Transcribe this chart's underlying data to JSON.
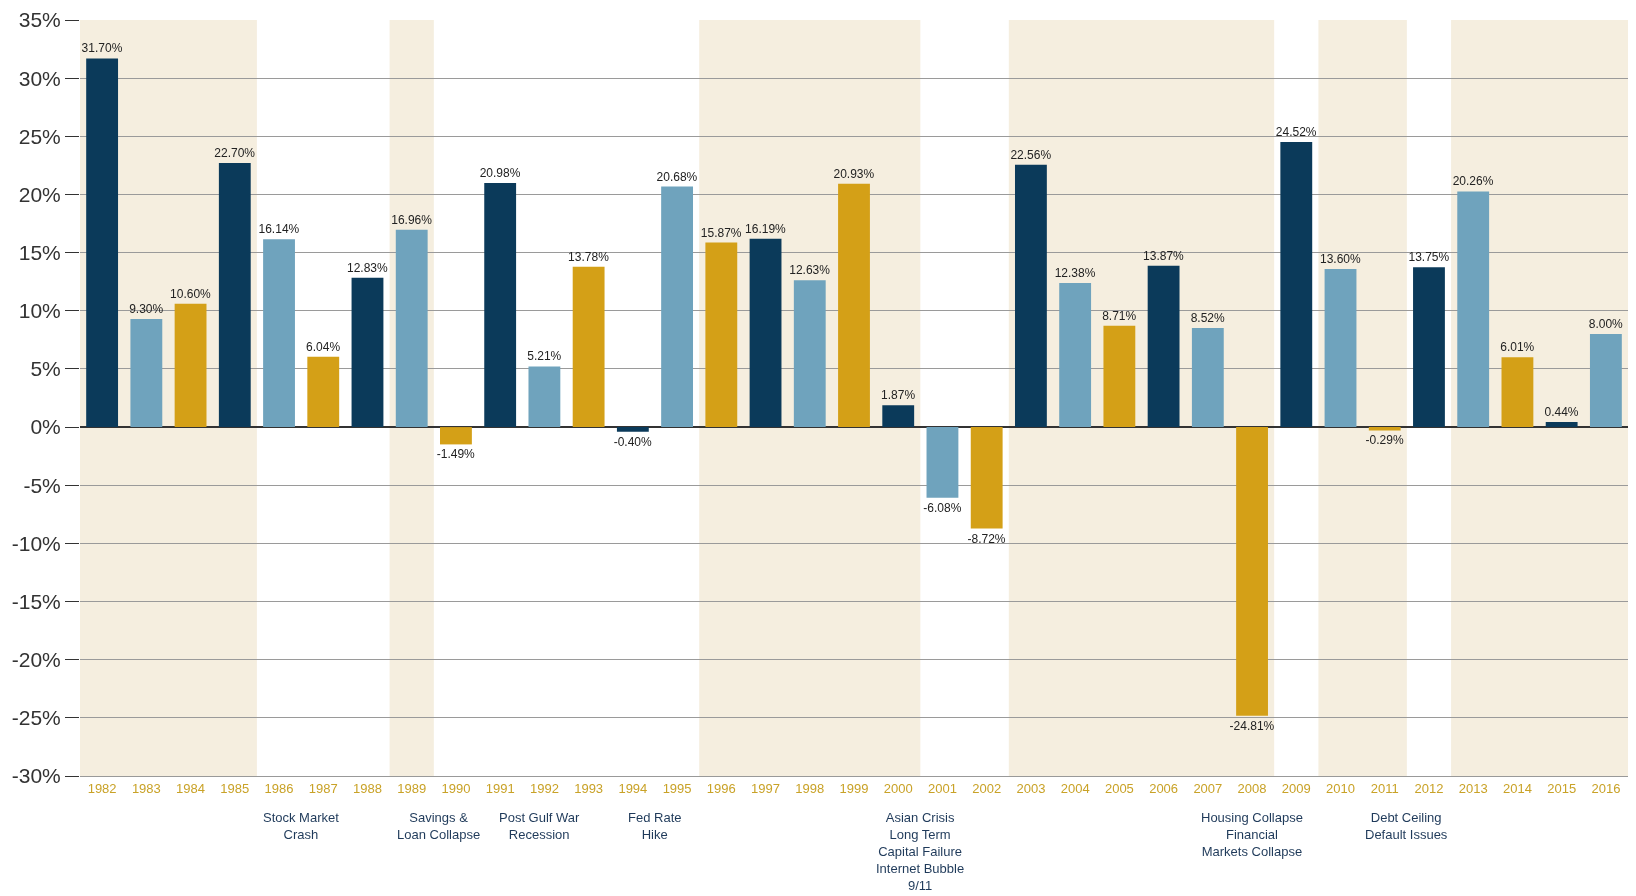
{
  "chart_data": {
    "type": "bar",
    "categories": [
      "1982",
      "1983",
      "1984",
      "1985",
      "1986",
      "1987",
      "1988",
      "1989",
      "1990",
      "1991",
      "1992",
      "1993",
      "1994",
      "1995",
      "1996",
      "1997",
      "1998",
      "1999",
      "2000",
      "2001",
      "2002",
      "2003",
      "2004",
      "2005",
      "2006",
      "2007",
      "2008",
      "2009",
      "2010",
      "2011",
      "2012",
      "2013",
      "2014",
      "2015",
      "2016"
    ],
    "values": [
      31.7,
      9.3,
      10.6,
      22.7,
      16.14,
      6.04,
      12.83,
      16.96,
      -1.49,
      20.98,
      5.21,
      13.78,
      -0.4,
      20.68,
      15.87,
      16.19,
      12.63,
      20.93,
      1.87,
      -6.08,
      -8.72,
      22.56,
      12.38,
      8.71,
      13.87,
      8.52,
      -24.81,
      24.52,
      13.6,
      -0.29,
      13.75,
      20.26,
      6.01,
      0.44,
      8.0
    ],
    "value_labels": [
      "31.70%",
      "9.30%",
      "10.60%",
      "22.70%",
      "16.14%",
      "6.04%",
      "12.83%",
      "16.96%",
      "-1.49%",
      "20.98%",
      "5.21%",
      "13.78%",
      "-0.40%",
      "20.68%",
      "15.87%",
      "16.19%",
      "12.63%",
      "20.93%",
      "1.87%",
      "-6.08%",
      "-8.72%",
      "22.56%",
      "12.38%",
      "8.71%",
      "13.87%",
      "8.52%",
      "-24.81%",
      "24.52%",
      "13.60%",
      "-0.29%",
      "13.75%",
      "20.26%",
      "6.01%",
      "0.44%",
      "8.00%"
    ],
    "colors": [
      "#0b3a5a",
      "#6fa3bd",
      "#d4a017",
      "#0b3a5a",
      "#6fa3bd",
      "#d4a017",
      "#0b3a5a",
      "#6fa3bd",
      "#d4a017",
      "#0b3a5a",
      "#6fa3bd",
      "#d4a017",
      "#0b3a5a",
      "#6fa3bd",
      "#d4a017",
      "#0b3a5a",
      "#6fa3bd",
      "#d4a017",
      "#0b3a5a",
      "#6fa3bd",
      "#d4a017",
      "#0b3a5a",
      "#6fa3bd",
      "#d4a017",
      "#0b3a5a",
      "#6fa3bd",
      "#d4a017",
      "#0b3a5a",
      "#6fa3bd",
      "#d4a017",
      "#0b3a5a",
      "#6fa3bd",
      "#d4a017",
      "#0b3a5a",
      "#6fa3bd"
    ],
    "ylim": [
      -30,
      35
    ],
    "yticks": [
      {
        "value": -30,
        "label": "-30%"
      },
      {
        "value": -25,
        "label": "-25%"
      },
      {
        "value": -20,
        "label": "-20%"
      },
      {
        "value": -15,
        "label": "-15%"
      },
      {
        "value": -10,
        "label": "-10%"
      },
      {
        "value": -5,
        "label": "-5%"
      },
      {
        "value": 0,
        "label": "0%"
      },
      {
        "value": 5,
        "label": "5%"
      },
      {
        "value": 10,
        "label": "10%"
      },
      {
        "value": 15,
        "label": "15%"
      },
      {
        "value": 20,
        "label": "20%"
      },
      {
        "value": 25,
        "label": "25%"
      },
      {
        "value": 30,
        "label": "30%"
      },
      {
        "value": 35,
        "label": "35%"
      }
    ],
    "grid": "y",
    "bands": [
      {
        "axis": "x",
        "from": "1982",
        "to": "1985",
        "color": "#f5eedf"
      },
      {
        "axis": "x",
        "from": "1989",
        "to": "1989",
        "color": "#f5eedf"
      },
      {
        "axis": "x",
        "from": "1996",
        "to": "2000",
        "color": "#f5eedf"
      },
      {
        "axis": "x",
        "from": "2003",
        "to": "2008",
        "color": "#f5eedf"
      },
      {
        "axis": "x",
        "from": "2010",
        "to": "2011",
        "color": "#f5eedf"
      },
      {
        "axis": "x",
        "from": "2013",
        "to": "2016",
        "color": "#f5eedf"
      }
    ],
    "annotations": [
      "Stock Market\nCrash",
      "Savings &\nLoan Collapse",
      "Post Gulf War\nRecession",
      "Fed Rate\nHike",
      "Asian Crisis\nLong Term\nCapital Failure\nInternet Bubble\n9/11",
      "Housing Collapse\nFinancial\nMarkets Collapse",
      "Debt Ceiling\nDefault Issues"
    ]
  }
}
